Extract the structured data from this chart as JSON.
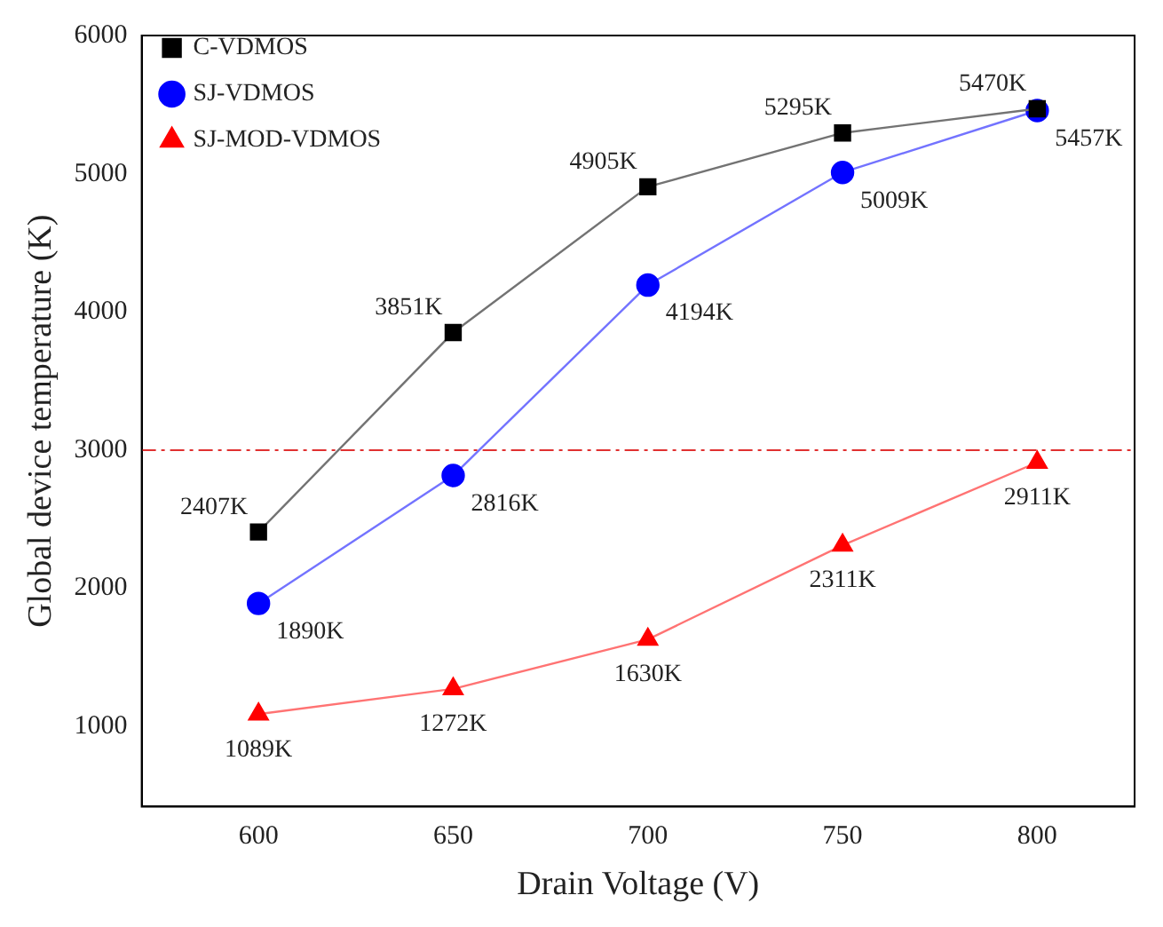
{
  "chart_data": {
    "type": "line",
    "xlabel": "Drain Voltage (V)",
    "ylabel": "Global device temperature (K)",
    "x": [
      600,
      650,
      700,
      750,
      800
    ],
    "series": [
      {
        "name": "C-VDMOS",
        "color": "#000000",
        "marker": "square",
        "values": [
          2407,
          3851,
          4905,
          5295,
          5470
        ],
        "value_labels": [
          "2407K",
          "3851K",
          "4905K",
          "5295K",
          "5470K"
        ]
      },
      {
        "name": "SJ-VDMOS",
        "color": "#0000ff",
        "marker": "circle",
        "values": [
          1890,
          2816,
          4194,
          5009,
          5457
        ],
        "value_labels": [
          "1890K",
          "2816K",
          "4194K",
          "5009K",
          "5457K"
        ]
      },
      {
        "name": "SJ-MOD-VDMOS",
        "color": "#ff0000",
        "marker": "triangle",
        "values": [
          1089,
          1272,
          1630,
          2311,
          2911
        ],
        "value_labels": [
          "1089K",
          "1272K",
          "1630K",
          "2311K",
          "2911K"
        ]
      }
    ],
    "xlim": [
      570,
      825
    ],
    "xticks": [
      600,
      650,
      700,
      750,
      800
    ],
    "ylim": [
      420,
      6000
    ],
    "yticks": [
      1000,
      2000,
      3000,
      4000,
      5000,
      6000
    ],
    "ref_lines": [
      {
        "axis": "y",
        "value": 3000,
        "color": "#e03030",
        "line_style": "dashdot"
      }
    ],
    "legend": "top left",
    "grid": false,
    "line_style": "solid"
  }
}
